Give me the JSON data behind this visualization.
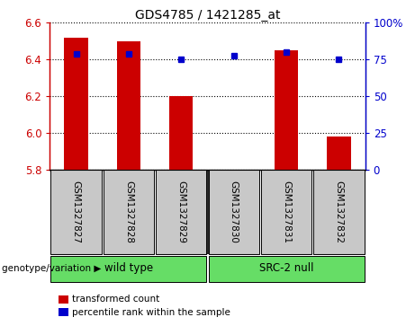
{
  "title": "GDS4785 / 1421285_at",
  "samples": [
    "GSM1327827",
    "GSM1327828",
    "GSM1327829",
    "GSM1327830",
    "GSM1327831",
    "GSM1327832"
  ],
  "red_values": [
    6.52,
    6.5,
    6.2,
    5.8,
    6.45,
    5.98
  ],
  "blue_values": [
    6.43,
    6.43,
    6.4,
    6.42,
    6.44,
    6.4
  ],
  "y_min": 5.8,
  "y_max": 6.6,
  "y_ticks": [
    5.8,
    6.0,
    6.2,
    6.4,
    6.6
  ],
  "y2_ticks": [
    0,
    25,
    50,
    75,
    100
  ],
  "bar_color": "#CC0000",
  "dot_color": "#0000CC",
  "background_color": "#ffffff",
  "label_box_color": "#C8C8C8",
  "group_color": "#66DD66",
  "genotype_label": "genotype/variation",
  "legend_red": "transformed count",
  "legend_blue": "percentile rank within the sample",
  "group1_label": "wild type",
  "group2_label": "SRC-2 null"
}
